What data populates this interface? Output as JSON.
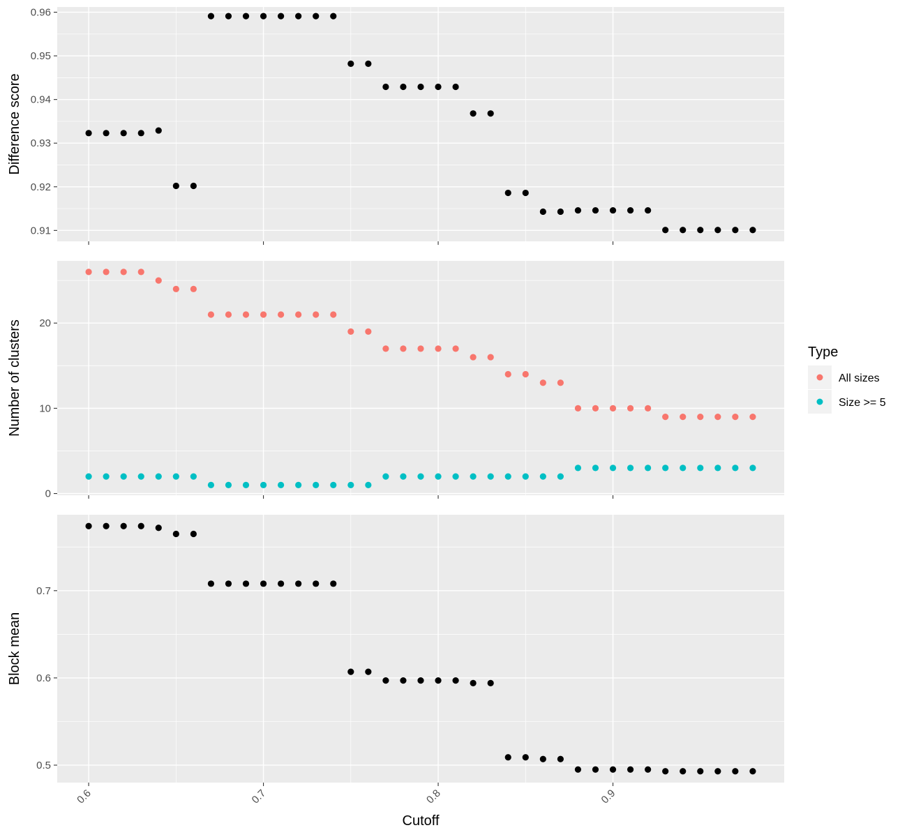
{
  "chart_data": {
    "type": "scatter",
    "xlabel": "Cutoff",
    "x_ticks": [
      "0.6",
      "0.7",
      "0.8",
      "0.9"
    ],
    "x": [
      0.6,
      0.61,
      0.62,
      0.63,
      0.64,
      0.65,
      0.66,
      0.67,
      0.68,
      0.69,
      0.7,
      0.71,
      0.72,
      0.73,
      0.74,
      0.75,
      0.76,
      0.77,
      0.78,
      0.79,
      0.8,
      0.81,
      0.82,
      0.83,
      0.84,
      0.85,
      0.86,
      0.87,
      0.88,
      0.89,
      0.9,
      0.91,
      0.92,
      0.93,
      0.94,
      0.95,
      0.96,
      0.97,
      0.98
    ],
    "xlim": [
      0.582,
      0.998
    ],
    "grid": true,
    "legend": {
      "title": "Type",
      "position": "right",
      "entries": [
        {
          "label": "All sizes",
          "color": "#f8766d"
        },
        {
          "label": "Size >= 5",
          "color": "#00bfc4"
        }
      ]
    },
    "panels": [
      {
        "ylabel": "Difference score",
        "ylim": [
          0.9075,
          0.9612
        ],
        "y_ticks": [
          "0.91",
          "0.92",
          "0.93",
          "0.94",
          "0.95",
          "0.96"
        ],
        "series": [
          {
            "color": "#000000",
            "values": [
              0.9323,
              0.9323,
              0.9323,
              0.9323,
              0.9329,
              0.9202,
              0.9202,
              0.9591,
              0.9591,
              0.9591,
              0.9591,
              0.9591,
              0.9591,
              0.9591,
              0.9591,
              0.9482,
              0.9482,
              0.9429,
              0.9429,
              0.9429,
              0.9429,
              0.9429,
              0.9368,
              0.9368,
              0.9186,
              0.9186,
              0.9143,
              0.9143,
              0.9146,
              0.9146,
              0.9146,
              0.9146,
              0.9146,
              0.9101,
              0.9101,
              0.9101,
              0.9101,
              0.9101,
              0.9101
            ]
          }
        ]
      },
      {
        "ylabel": "Number of clusters",
        "ylim": [
          -0.2,
          27.3
        ],
        "y_ticks": [
          "0",
          "10",
          "20"
        ],
        "series": [
          {
            "name": "All sizes",
            "color": "#f8766d",
            "values": [
              26,
              26,
              26,
              26,
              25,
              24,
              24,
              21,
              21,
              21,
              21,
              21,
              21,
              21,
              21,
              19,
              19,
              17,
              17,
              17,
              17,
              17,
              16,
              16,
              14,
              14,
              13,
              13,
              10,
              10,
              10,
              10,
              10,
              9,
              9,
              9,
              9,
              9,
              9
            ]
          },
          {
            "name": "Size >= 5",
            "color": "#00bfc4",
            "values": [
              2,
              2,
              2,
              2,
              2,
              2,
              2,
              1,
              1,
              1,
              1,
              1,
              1,
              1,
              1,
              1,
              1,
              2,
              2,
              2,
              2,
              2,
              2,
              2,
              2,
              2,
              2,
              2,
              3,
              3,
              3,
              3,
              3,
              3,
              3,
              3,
              3,
              3,
              3
            ]
          }
        ]
      },
      {
        "ylabel": "Block mean",
        "ylim": [
          0.48,
          0.787
        ],
        "y_ticks": [
          "0.5",
          "0.6",
          "0.7"
        ],
        "series": [
          {
            "color": "#000000",
            "values": [
              0.774,
              0.774,
              0.774,
              0.774,
              0.772,
              0.765,
              0.765,
              0.708,
              0.708,
              0.708,
              0.708,
              0.708,
              0.708,
              0.708,
              0.708,
              0.607,
              0.607,
              0.597,
              0.597,
              0.597,
              0.597,
              0.597,
              0.594,
              0.594,
              0.509,
              0.509,
              0.507,
              0.507,
              0.495,
              0.495,
              0.495,
              0.495,
              0.495,
              0.493,
              0.493,
              0.493,
              0.493,
              0.493,
              0.493
            ]
          }
        ]
      }
    ]
  }
}
